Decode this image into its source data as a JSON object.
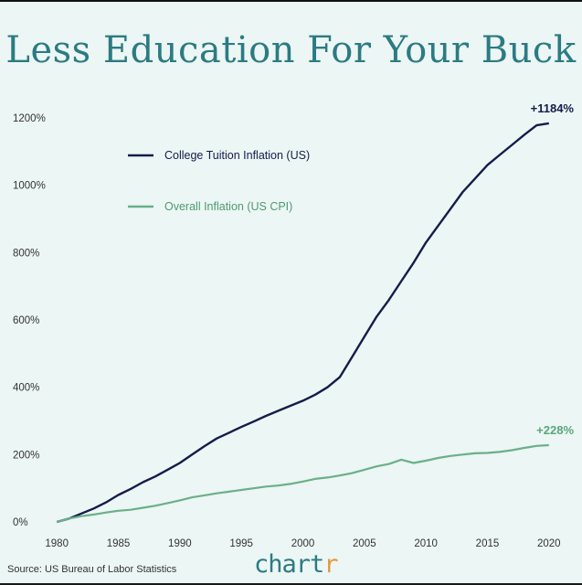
{
  "title": "Less Education For Your Buck",
  "source": "Source: US Bureau of Labor Statistics",
  "brand": {
    "text": "chart",
    "accent": "r"
  },
  "colors": {
    "background": "#ecf6f4",
    "title": "#2b7b83",
    "tuition": "#141c4a",
    "cpi": "#6ab089",
    "brand_accent": "#e39a3c"
  },
  "chart_data": {
    "type": "line",
    "title": "Less Education For Your Buck",
    "xlabel": "",
    "ylabel": "",
    "xlim": [
      1978.5,
      2021.5
    ],
    "ylim": [
      0,
      1200
    ],
    "x_ticks": [
      "1980",
      "1985",
      "1990",
      "1995",
      "2000",
      "2005",
      "2010",
      "2015",
      "2020"
    ],
    "y_ticks": [
      "0%",
      "200%",
      "400%",
      "600%",
      "800%",
      "1000%",
      "1200%"
    ],
    "grid": false,
    "legend_position": "top-left",
    "series": [
      {
        "name": "College Tuition Inflation (US)",
        "color": "#141c4a",
        "end_label": "+1184%",
        "x": [
          1980,
          1981,
          1982,
          1983,
          1984,
          1985,
          1986,
          1987,
          1988,
          1989,
          1990,
          1991,
          1992,
          1993,
          1994,
          1995,
          1996,
          1997,
          1998,
          1999,
          2000,
          2001,
          2002,
          2003,
          2004,
          2005,
          2006,
          2007,
          2008,
          2009,
          2010,
          2011,
          2012,
          2013,
          2014,
          2015,
          2016,
          2017,
          2018,
          2019,
          2020
        ],
        "values": [
          0,
          10,
          25,
          40,
          58,
          80,
          98,
          118,
          135,
          155,
          175,
          200,
          225,
          248,
          265,
          282,
          298,
          315,
          330,
          345,
          360,
          378,
          400,
          430,
          490,
          550,
          610,
          660,
          715,
          770,
          830,
          880,
          930,
          980,
          1020,
          1060,
          1090,
          1120,
          1150,
          1178,
          1184
        ]
      },
      {
        "name": "Overall Inflation (US CPI)",
        "color": "#6ab089",
        "end_label": "+228%",
        "x": [
          1980,
          1981,
          1982,
          1983,
          1984,
          1985,
          1986,
          1987,
          1988,
          1989,
          1990,
          1991,
          1992,
          1993,
          1994,
          1995,
          1996,
          1997,
          1998,
          1999,
          2000,
          2001,
          2002,
          2003,
          2004,
          2005,
          2006,
          2007,
          2008,
          2009,
          2010,
          2011,
          2012,
          2013,
          2014,
          2015,
          2016,
          2017,
          2018,
          2019,
          2020
        ],
        "values": [
          0,
          10,
          17,
          22,
          28,
          33,
          36,
          42,
          48,
          56,
          64,
          73,
          79,
          85,
          90,
          95,
          100,
          105,
          108,
          113,
          120,
          128,
          132,
          138,
          145,
          155,
          165,
          172,
          185,
          175,
          182,
          190,
          196,
          200,
          204,
          205,
          208,
          213,
          220,
          226,
          228
        ]
      }
    ]
  }
}
